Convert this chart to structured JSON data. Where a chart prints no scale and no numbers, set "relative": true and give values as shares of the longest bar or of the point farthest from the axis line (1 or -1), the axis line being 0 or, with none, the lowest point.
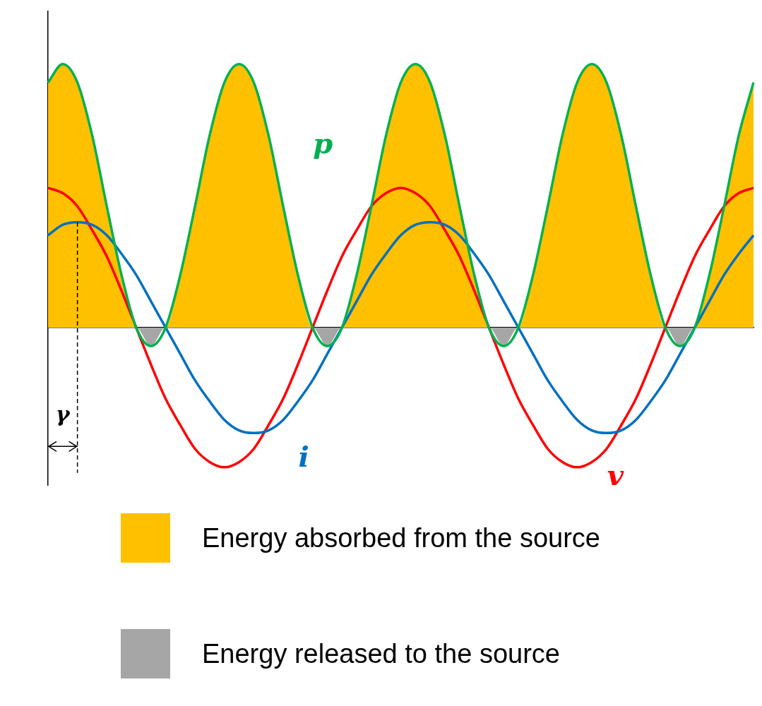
{
  "chart_data": {
    "type": "line",
    "relative": true,
    "legend": "bottom",
    "grid": false,
    "marker": "none",
    "annotations": [
      "γ"
    ],
    "categories": [
      null,
      null,
      null,
      null,
      null,
      null,
      null,
      null,
      null,
      null,
      null,
      null,
      null,
      null,
      null,
      null,
      null,
      null,
      null,
      null,
      null,
      null,
      null,
      null,
      null,
      null,
      null,
      null,
      null,
      null,
      null,
      null,
      null,
      null,
      null,
      null,
      null,
      null,
      null,
      null,
      null,
      null,
      null,
      null,
      null,
      null,
      null,
      null,
      null
    ],
    "series": [
      {
        "name": "p",
        "color": "#00b050",
        "values": [
          0.93,
          1,
          0.93,
          0.73,
          0.46,
          0.2,
          0,
          -0.07,
          0,
          0.2,
          0.46,
          0.73,
          0.93,
          1,
          0.93,
          0.73,
          0.46,
          0.2,
          0,
          -0.07,
          0,
          0.2,
          0.46,
          0.73,
          0.93,
          1,
          0.93,
          0.73,
          0.46,
          0.2,
          0,
          -0.07,
          0,
          0.2,
          0.46,
          0.73,
          0.93,
          1,
          0.93,
          0.73,
          0.46,
          0.2,
          0,
          -0.07,
          0,
          0.2,
          0.46,
          0.73,
          0.93
        ]
      },
      {
        "name": "i",
        "color": "#0070c0",
        "values": [
          0.35,
          0.39,
          0.4,
          0.39,
          0.35,
          0.28,
          0.2,
          0.1,
          0,
          -0.1,
          -0.2,
          -0.28,
          -0.35,
          -0.39,
          -0.4,
          -0.39,
          -0.35,
          -0.28,
          -0.2,
          -0.1,
          0,
          0.1,
          0.2,
          0.28,
          0.35,
          0.39,
          0.4,
          0.39,
          0.35,
          0.28,
          0.2,
          0.1,
          0,
          -0.1,
          -0.2,
          -0.28,
          -0.35,
          -0.39,
          -0.4,
          -0.39,
          -0.35,
          -0.28,
          -0.2,
          -0.1,
          0,
          0.1,
          0.2,
          0.28,
          0.35
        ]
      },
      {
        "name": "v",
        "color": "#ff0000",
        "values": [
          0.53,
          0.51,
          0.46,
          0.37,
          0.27,
          0.14,
          0,
          -0.14,
          -0.27,
          -0.37,
          -0.46,
          -0.51,
          -0.53,
          -0.51,
          -0.46,
          -0.37,
          -0.27,
          -0.14,
          0,
          0.14,
          0.27,
          0.37,
          0.46,
          0.51,
          0.53,
          0.51,
          0.46,
          0.37,
          0.27,
          0.14,
          0,
          -0.14,
          -0.27,
          -0.37,
          -0.46,
          -0.51,
          -0.53,
          -0.51,
          -0.46,
          -0.37,
          -0.27,
          -0.14,
          0,
          0.14,
          0.27,
          0.37,
          0.46,
          0.51,
          0.53
        ]
      },
      {
        "name": "Energy absorbed from the source",
        "type": "area",
        "color": "#ffc000",
        "values": [
          0.93,
          1,
          0.93,
          0.73,
          0.46,
          0.2,
          0,
          0,
          0,
          0.2,
          0.46,
          0.73,
          0.93,
          1,
          0.93,
          0.73,
          0.46,
          0.2,
          0,
          0,
          0,
          0.2,
          0.46,
          0.73,
          0.93,
          1,
          0.93,
          0.73,
          0.46,
          0.2,
          0,
          0,
          0,
          0.2,
          0.46,
          0.73,
          0.93,
          1,
          0.93,
          0.73,
          0.46,
          0.2,
          0,
          0,
          0,
          0.2,
          0.46,
          0.73,
          0.93
        ]
      },
      {
        "name": "Energy released to the source",
        "type": "area",
        "color": "#a6a6a6",
        "values": [
          0,
          0,
          0,
          0,
          0,
          0,
          0,
          -0.07,
          0,
          0,
          0,
          0,
          0,
          0,
          0,
          0,
          0,
          0,
          0,
          -0.07,
          0,
          0,
          0,
          0,
          0,
          0,
          0,
          0,
          0,
          0,
          0,
          -0.07,
          0,
          0,
          0,
          0,
          0,
          0,
          0,
          0,
          0,
          0,
          0,
          -0.07,
          0,
          0,
          0,
          0,
          0
        ]
      }
    ]
  }
}
